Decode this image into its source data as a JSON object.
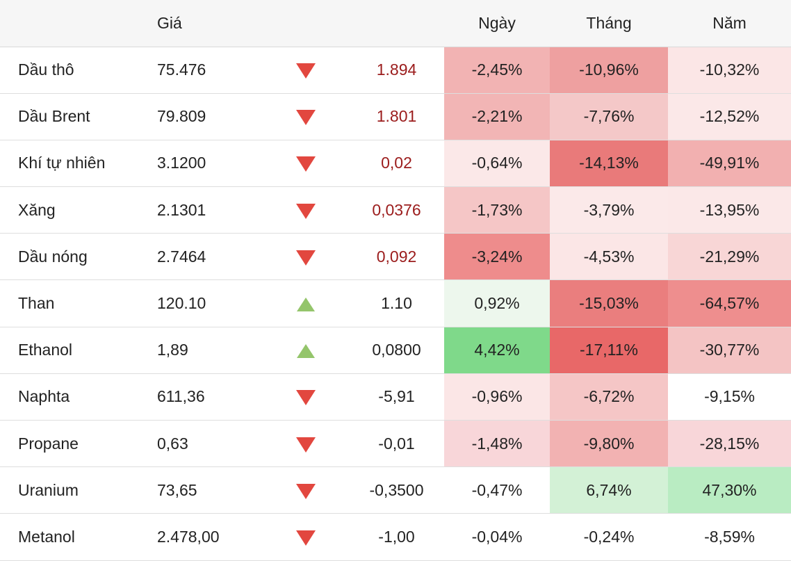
{
  "header": {
    "name": "",
    "price": "Giá",
    "direction": "",
    "change": "",
    "day": "Ngày",
    "month": "Tháng",
    "year": "Năm"
  },
  "colors": {
    "up_arrow": "#94c56b",
    "down_arrow": "#e2473f",
    "negative_change_text": "#9b1c1c"
  },
  "rows": [
    {
      "name": "Dầu thô",
      "price": "75.476",
      "direction": "down",
      "direction_icon": "triangle-down-icon",
      "change": "1.894",
      "change_style": "down",
      "day": "-2,45%",
      "day_bg": "#f2b3b3",
      "month": "-10,96%",
      "month_bg": "#eea0a0",
      "year": "-10,32%",
      "year_bg": "#fbe6e6"
    },
    {
      "name": "Dầu Brent",
      "price": "79.809",
      "direction": "down",
      "direction_icon": "triangle-down-icon",
      "change": "1.801",
      "change_style": "down",
      "day": "-2,21%",
      "day_bg": "#f2b5b5",
      "month": "-7,76%",
      "month_bg": "#f4c8c8",
      "year": "-12,52%",
      "year_bg": "#fbe8e8"
    },
    {
      "name": "Khí tự nhiên",
      "price": "3.1200",
      "direction": "down",
      "direction_icon": "triangle-down-icon",
      "change": "0,02",
      "change_style": "down",
      "day": "-0,64%",
      "day_bg": "#fbe8e8",
      "month": "-14,13%",
      "month_bg": "#e97a7a",
      "year": "-49,91%",
      "year_bg": "#f2b0b0"
    },
    {
      "name": "Xăng",
      "price": "2.1301",
      "direction": "down",
      "direction_icon": "triangle-down-icon",
      "change": "0,0376",
      "change_style": "down",
      "day": "-1,73%",
      "day_bg": "#f5c6c6",
      "month": "-3,79%",
      "month_bg": "#fbe9e9",
      "year": "-13,95%",
      "year_bg": "#fbe8e8"
    },
    {
      "name": "Dầu nóng",
      "price": "2.7464",
      "direction": "down",
      "direction_icon": "triangle-down-icon",
      "change": "0,092",
      "change_style": "down",
      "day": "-3,24%",
      "day_bg": "#ee8c8c",
      "month": "-4,53%",
      "month_bg": "#fbe6e6",
      "year": "-21,29%",
      "year_bg": "#f8d6d6"
    },
    {
      "name": "Than",
      "price": "120.10",
      "direction": "up",
      "direction_icon": "triangle-up-icon",
      "change": "1.10",
      "change_style": "neutral",
      "day": "0,92%",
      "day_bg": "#edf7ed",
      "month": "-15,03%",
      "month_bg": "#ea7e7e",
      "year": "-64,57%",
      "year_bg": "#ee8e8e"
    },
    {
      "name": "Ethanol",
      "price": "1,89",
      "direction": "up",
      "direction_icon": "triangle-up-icon",
      "change": "0,0800",
      "change_style": "neutral",
      "day": "4,42%",
      "day_bg": "#7fd98a",
      "month": "-17,11%",
      "month_bg": "#e86868",
      "year": "-30,77%",
      "year_bg": "#f4c4c4"
    },
    {
      "name": "Naphta",
      "price": "611,36",
      "direction": "down",
      "direction_icon": "triangle-down-icon",
      "change": "-5,91",
      "change_style": "neutral",
      "day": "-0,96%",
      "day_bg": "#fbe6e6",
      "month": "-6,72%",
      "month_bg": "#f5c6c6",
      "year": "-9,15%",
      "year_bg": "#ffffff"
    },
    {
      "name": "Propane",
      "price": "0,63",
      "direction": "down",
      "direction_icon": "triangle-down-icon",
      "change": "-0,01",
      "change_style": "neutral",
      "day": "-1,48%",
      "day_bg": "#f8d6d9",
      "month": "-9,80%",
      "month_bg": "#f2b2b2",
      "year": "-28,15%",
      "year_bg": "#f8d6d9"
    },
    {
      "name": "Uranium",
      "price": "73,65",
      "direction": "down",
      "direction_icon": "triangle-down-icon",
      "change": "-0,3500",
      "change_style": "neutral",
      "day": "-0,47%",
      "day_bg": "#ffffff",
      "month": "6,74%",
      "month_bg": "#d3f1d6",
      "year": "47,30%",
      "year_bg": "#b9ecc2"
    },
    {
      "name": "Metanol",
      "price": "2.478,00",
      "direction": "down",
      "direction_icon": "triangle-down-icon",
      "change": "-1,00",
      "change_style": "neutral",
      "day": "-0,04%",
      "day_bg": "#ffffff",
      "month": "-0,24%",
      "month_bg": "#ffffff",
      "year": "-8,59%",
      "year_bg": "#ffffff"
    }
  ]
}
